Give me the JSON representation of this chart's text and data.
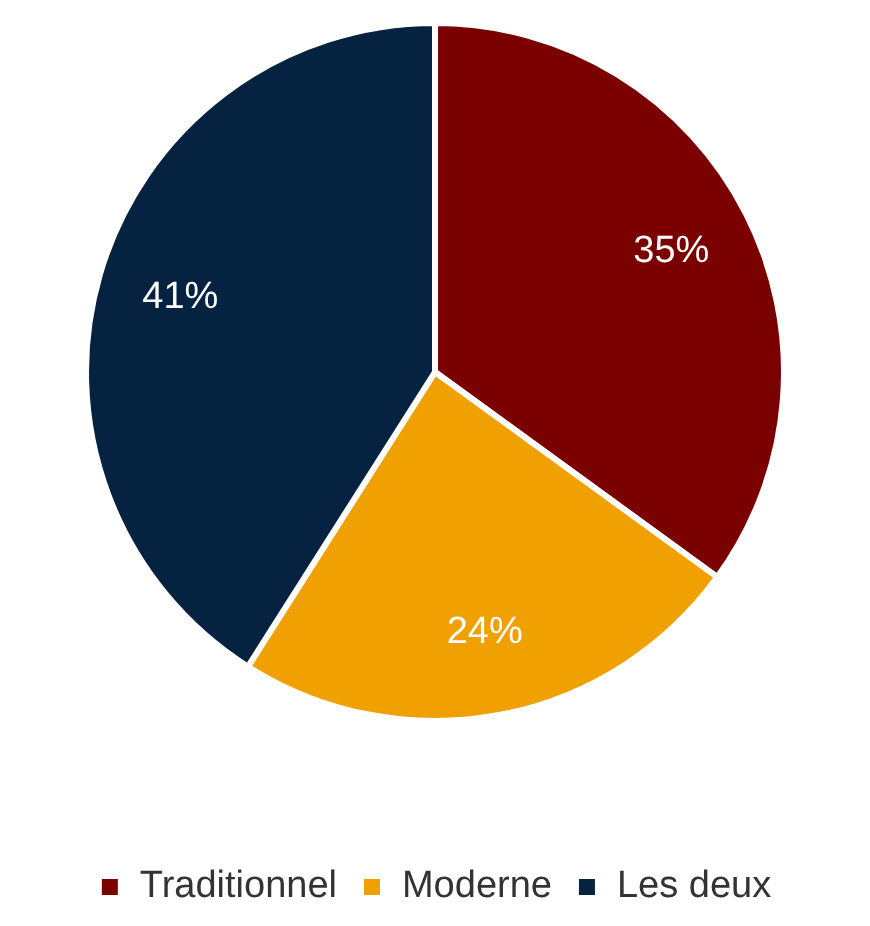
{
  "chart_data": {
    "type": "pie",
    "categories": [
      "Traditionnel",
      "Moderne",
      "Les deux"
    ],
    "values": [
      35,
      24,
      41
    ],
    "colors": [
      "#7b0000",
      "#f0a000",
      "#052340"
    ],
    "value_labels": [
      "35%",
      "24%",
      "41%"
    ],
    "legend": "bottom"
  }
}
